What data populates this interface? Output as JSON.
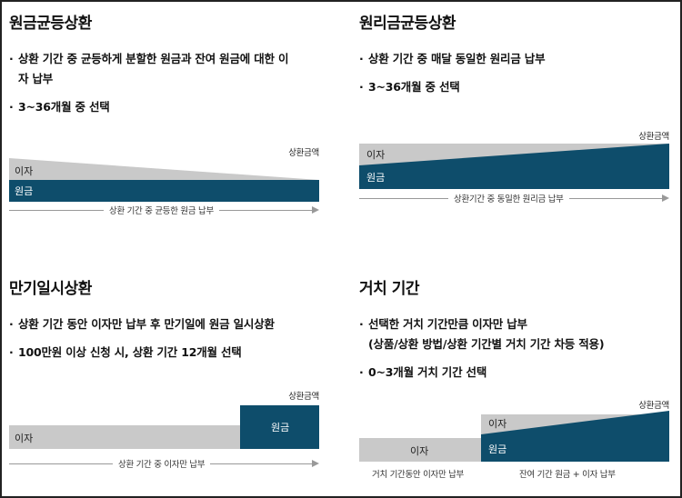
{
  "sections": [
    {
      "title": "원금균등상환",
      "bullets": [
        [
          "상환 기간 중 균등하게 분할한 원금과 잔여 원금에 대한 이",
          "자 납부"
        ],
        [
          "3~36개월 중 선택"
        ]
      ],
      "chart": {
        "amount_label": "상환금액",
        "interest_label": "이자",
        "principal_label": "원금",
        "axis_label": "상환 기간 중 균등한 원금 납부"
      }
    },
    {
      "title": "원리금균등상환",
      "bullets": [
        [
          "상환 기간 중 매달 동일한 원리금 납부"
        ],
        [
          "3~36개월 중 선택"
        ]
      ],
      "chart": {
        "amount_label": "상환금액",
        "interest_label": "이자",
        "principal_label": "원금",
        "axis_label": "상환기간 중 동일한 원리금 납부"
      }
    },
    {
      "title": "만기일시상환",
      "bullets": [
        [
          "상환 기간 동안 이자만 납부 후 만기일에 원금 일시상환"
        ],
        [
          "100만원 이상 신청 시, 상환 기간 12개월 선택"
        ]
      ],
      "chart": {
        "amount_label": "상환금액",
        "interest_label": "이자",
        "principal_label": "원금",
        "axis_label": "상환 기간 중 이자만 납부"
      }
    },
    {
      "title": "거치 기간",
      "bullets": [
        [
          "선택한 거치 기간만큼 이자만 납부",
          "(상품/상환 방법/상환 기간별 거치 기간 차등 적용)"
        ],
        [
          "0~3개월 거치 기간 선택"
        ]
      ],
      "chart": {
        "amount_label": "상환금액",
        "interest_label": "이자",
        "principal_label": "원금",
        "grace_interest_label": "이자",
        "grace_axis_label": "거치 기간동안 이자만 납부",
        "repay_axis_label": "잔여 기간 원금 + 이자 납부"
      }
    }
  ],
  "colors": {
    "principal": "#0e4d6b",
    "principal_light": "#2e7b93",
    "interest": "#c9c9c9",
    "text": "#111111"
  }
}
